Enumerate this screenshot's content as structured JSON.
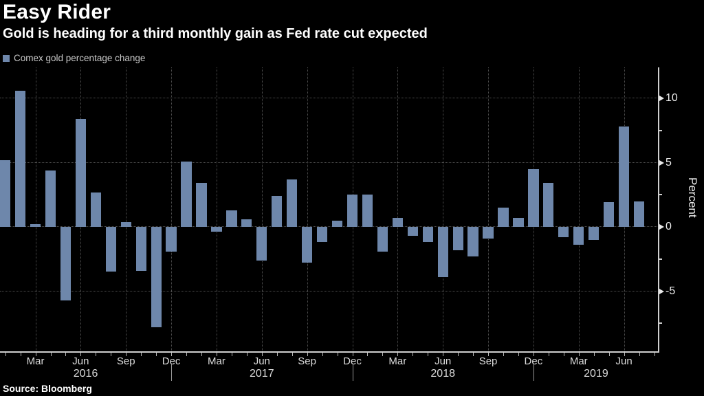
{
  "header": {
    "title": "Easy Rider",
    "subtitle": "Gold is heading for a third monthly gain as Fed rate cut expected"
  },
  "legend": {
    "label": "Comex gold percentage change",
    "swatch_color": "#6e87ab"
  },
  "footer": {
    "source": "Source: Bloomberg"
  },
  "chart_data": {
    "type": "bar",
    "title": "Easy Rider",
    "subtitle": "Gold is heading for a third monthly gain as Fed rate cut expected",
    "series_name": "Comex gold percentage change",
    "ylabel": "Percent",
    "x": [
      "2016-01",
      "2016-02",
      "2016-03",
      "2016-04",
      "2016-05",
      "2016-06",
      "2016-07",
      "2016-08",
      "2016-09",
      "2016-10",
      "2016-11",
      "2016-12",
      "2017-01",
      "2017-02",
      "2017-03",
      "2017-04",
      "2017-05",
      "2017-06",
      "2017-07",
      "2017-08",
      "2017-09",
      "2017-10",
      "2017-11",
      "2017-12",
      "2018-01",
      "2018-02",
      "2018-03",
      "2018-04",
      "2018-05",
      "2018-06",
      "2018-07",
      "2018-08",
      "2018-09",
      "2018-10",
      "2018-11",
      "2018-12",
      "2019-01",
      "2019-02",
      "2019-03",
      "2019-04",
      "2019-05",
      "2019-06",
      "2019-07"
    ],
    "values": [
      5.2,
      10.6,
      0.2,
      4.4,
      -5.7,
      8.4,
      2.7,
      -3.5,
      0.4,
      -3.4,
      -7.8,
      -1.9,
      5.1,
      3.4,
      -0.4,
      1.3,
      0.6,
      -2.6,
      2.4,
      3.7,
      -2.8,
      -1.2,
      0.5,
      2.5,
      2.5,
      -1.9,
      0.7,
      -0.7,
      -1.2,
      -3.9,
      -1.8,
      -2.3,
      -0.9,
      1.5,
      0.7,
      4.5,
      3.4,
      -0.8,
      -1.4,
      -1.0,
      1.9,
      7.8,
      2.0
    ],
    "y_axis": {
      "side": "right",
      "major_ticks": [
        10,
        5,
        0,
        -5
      ],
      "minor_ticks": [
        7.5,
        2.5,
        -2.5,
        -7.5
      ],
      "ylim": [
        -9.7,
        12.4
      ]
    },
    "x_axis": {
      "month_tick_labels": [
        "Mar",
        "Jun",
        "Sep",
        "Dec"
      ],
      "year_labels": [
        "2016",
        "2017",
        "2018",
        "2019"
      ]
    },
    "grid": "dotted",
    "legend_position": "top-left",
    "bar_color": "#6e87ab",
    "background": "#000000"
  }
}
